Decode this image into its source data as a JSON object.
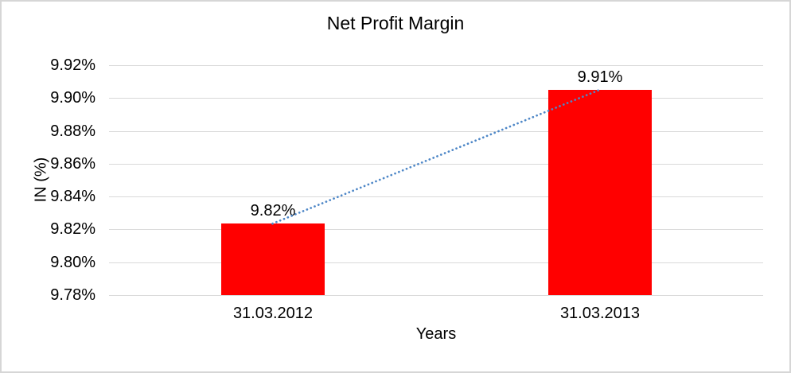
{
  "frame": {
    "background": "#ffffff",
    "border_color": "#d6d6d6"
  },
  "chart_data": {
    "type": "bar",
    "title": "Net Profit Margin",
    "xlabel": "Years",
    "ylabel": "IN (%)",
    "categories": [
      "31.03.2012",
      "31.03.2013"
    ],
    "series": [
      {
        "name": "Net Profit Margin",
        "values": [
          9.8235,
          9.905
        ]
      }
    ],
    "data_labels": [
      "9.82%",
      "9.91%"
    ],
    "ylim": [
      9.78,
      9.92
    ],
    "ytick_step": 0.02,
    "yticks": [
      "9.78%",
      "9.80%",
      "9.82%",
      "9.84%",
      "9.86%",
      "9.88%",
      "9.90%",
      "9.92%"
    ],
    "grid": true,
    "legend": "none",
    "bar_color": "#ff0000",
    "gridline_color": "#d9d9d9",
    "text_color": "#000000",
    "trendline": {
      "type": "linear",
      "style": "dotted",
      "color": "#4e87c7"
    }
  }
}
